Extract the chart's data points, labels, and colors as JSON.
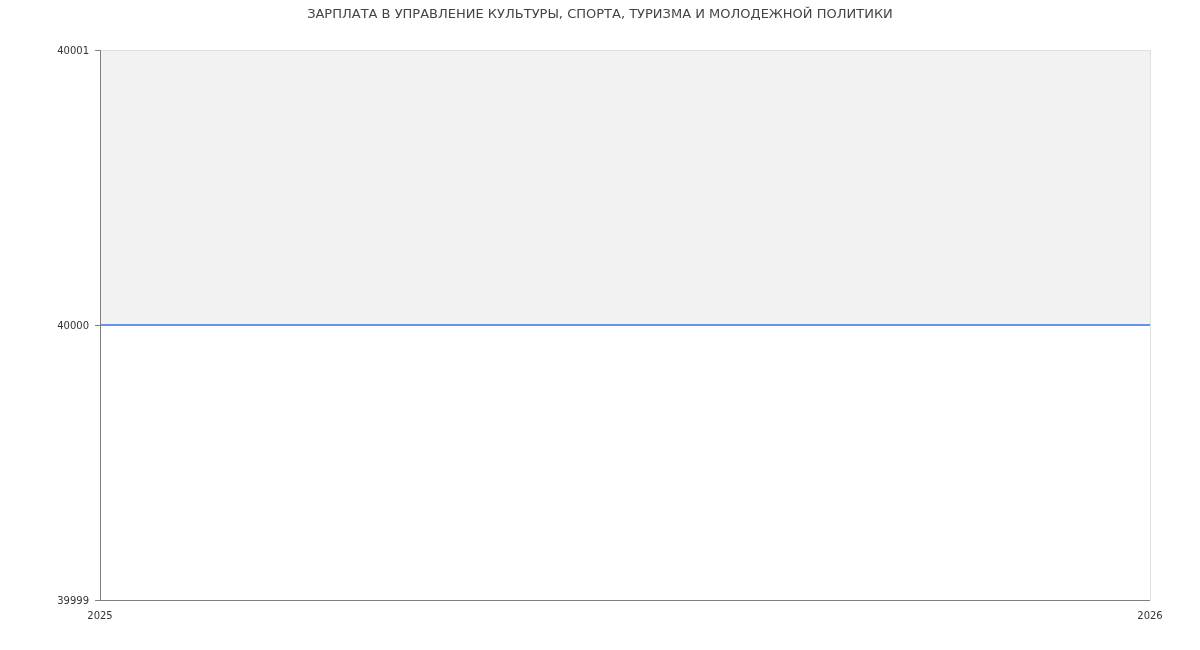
{
  "chart_data": {
    "type": "line",
    "title": "ЗАРПЛАТА В УПРАВЛЕНИЕ КУЛЬТУРЫ, СПОРТА, ТУРИЗМА И МОЛОДЕЖНОЙ ПОЛИТИКИ",
    "x": [
      "2025",
      "2026"
    ],
    "series": [
      {
        "color": "#6395ec",
        "values": [
          40000,
          40000
        ]
      }
    ],
    "xlim": [
      "2025",
      "2026"
    ],
    "xticks": [
      "2025",
      "2026"
    ],
    "ylim": [
      39999,
      40001
    ],
    "yticks": [
      39999,
      40000,
      40001
    ],
    "bands": [
      {
        "axis": "y",
        "from": 40000,
        "to": 40001,
        "color": "#f2f2f2"
      }
    ]
  }
}
